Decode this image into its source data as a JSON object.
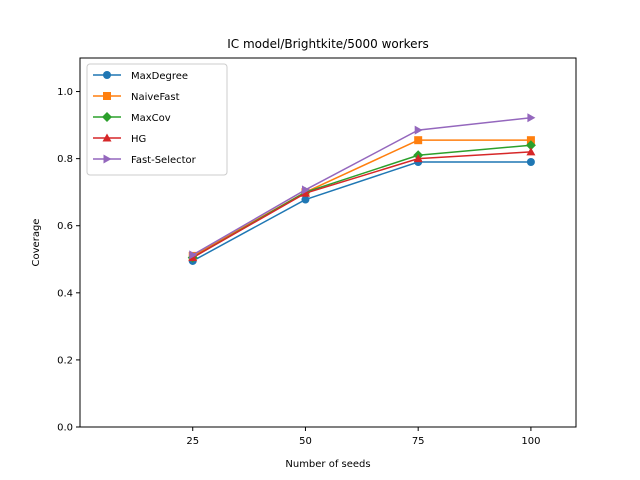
{
  "chart_data": {
    "type": "line",
    "title": "IC model/Brightkite/5000 workers",
    "xlabel": "Number of seeds",
    "ylabel": "Coverage",
    "x": [
      25,
      50,
      75,
      100
    ],
    "xlim": [
      0,
      110
    ],
    "ylim": [
      0,
      1.1
    ],
    "xticks": [
      "25",
      "50",
      "75",
      "100"
    ],
    "yticks": [
      "0.0",
      "0.2",
      "0.4",
      "0.6",
      "0.8",
      "1.0"
    ],
    "grid": false,
    "legend_position": "top-left",
    "series": [
      {
        "name": "MaxDegree",
        "values": [
          0.495,
          0.678,
          0.79,
          0.79
        ],
        "color": "#1f77b4",
        "marker": "circle"
      },
      {
        "name": "NaiveFast",
        "values": [
          0.51,
          0.7,
          0.855,
          0.855
        ],
        "color": "#ff7f0e",
        "marker": "square"
      },
      {
        "name": "MaxCov",
        "values": [
          0.505,
          0.7,
          0.81,
          0.84
        ],
        "color": "#2ca02c",
        "marker": "diamond"
      },
      {
        "name": "HG",
        "values": [
          0.505,
          0.697,
          0.8,
          0.82
        ],
        "color": "#d62728",
        "marker": "triangle-up"
      },
      {
        "name": "Fast-Selector",
        "values": [
          0.513,
          0.707,
          0.885,
          0.922
        ],
        "color": "#9467bd",
        "marker": "triangle-right"
      }
    ]
  }
}
